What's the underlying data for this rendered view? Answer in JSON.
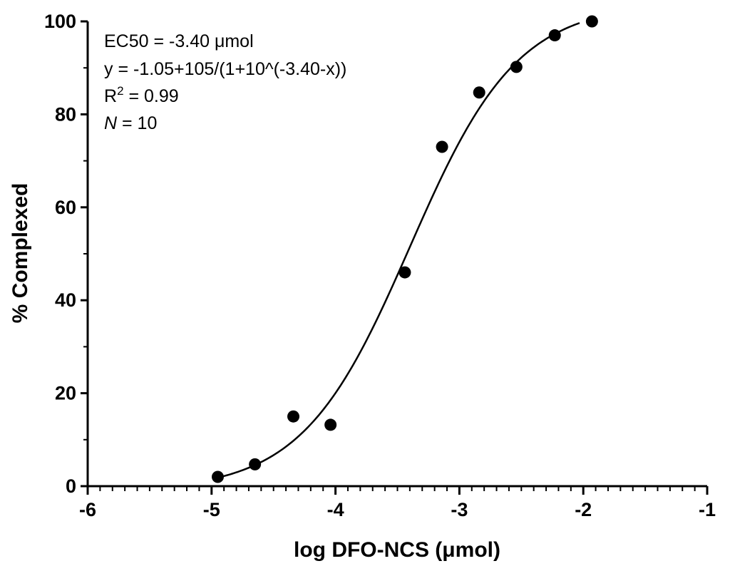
{
  "chart_data": {
    "type": "scatter",
    "xlabel": "log DFO-NCS (μmol)",
    "ylabel": "% Complexed",
    "xlim": [
      -6,
      -1
    ],
    "ylim": [
      0,
      100
    ],
    "x_ticks": [
      "-6",
      "-5",
      "-4",
      "-3",
      "-2",
      "-1"
    ],
    "y_ticks": [
      "0",
      "20",
      "40",
      "60",
      "80",
      "100"
    ],
    "grid": false,
    "legend": "none",
    "annotations": {
      "line1": "EC50 = -3.40 μmol",
      "line2": "y = -1.05+105/(1+10^(-3.40-x))",
      "line3_main": "R",
      "line3_sup": "2",
      "line3_rest": " = 0.99",
      "line4_italic": "N",
      "line4_rest": " = 10"
    },
    "series": [
      {
        "points": [
          {
            "x": -4.95,
            "y": 2
          },
          {
            "x": -4.65,
            "y": 4.7
          },
          {
            "x": -4.34,
            "y": 15
          },
          {
            "x": -4.04,
            "y": 13.2
          },
          {
            "x": -3.44,
            "y": 46
          },
          {
            "x": -3.14,
            "y": 73
          },
          {
            "x": -2.84,
            "y": 84.7
          },
          {
            "x": -2.54,
            "y": 90.2
          },
          {
            "x": -2.23,
            "y": 97
          },
          {
            "x": -1.93,
            "y": 100
          }
        ],
        "fit": {
          "model": "y = -1.05+105/(1+10^(-3.40-x))",
          "bottom": -1.05,
          "span": 105,
          "ec50": -3.4,
          "x_range": [
            -4.95,
            -2.03
          ]
        },
        "color": "#000000"
      }
    ]
  }
}
